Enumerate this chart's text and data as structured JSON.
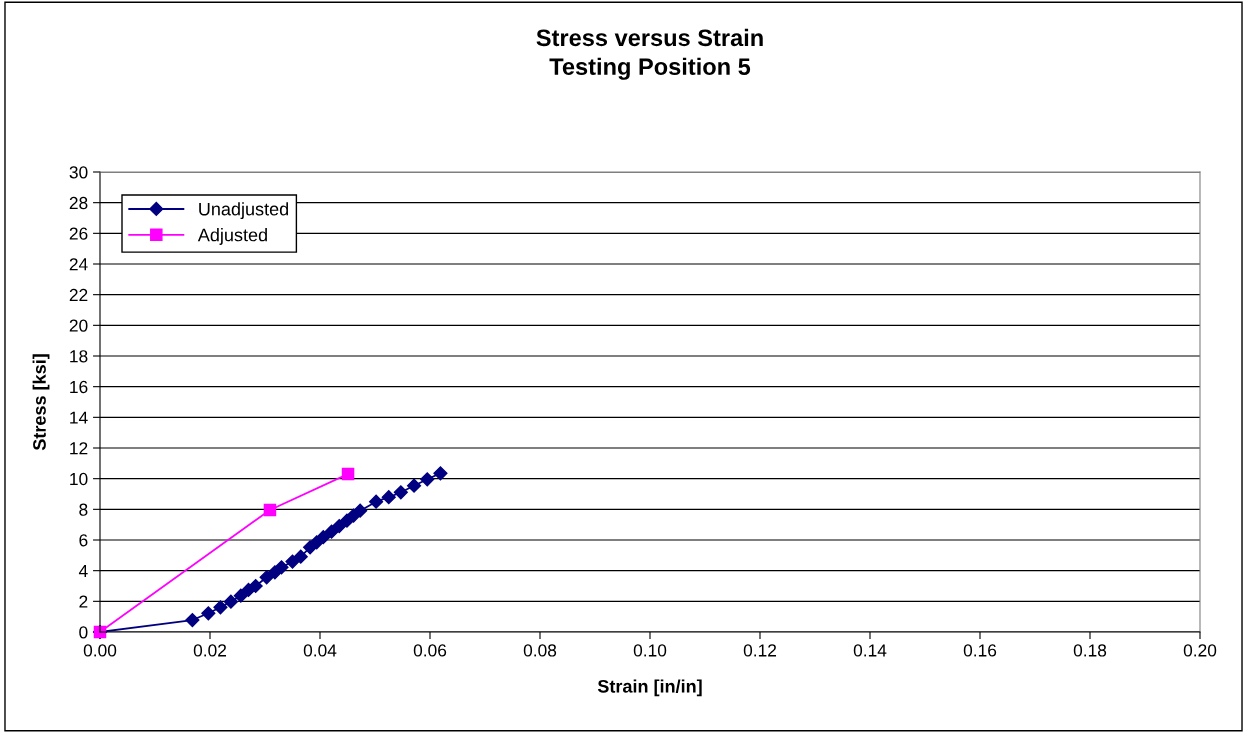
{
  "chart_data": {
    "type": "line",
    "title": "Stress versus Strain\nTesting Position 5",
    "xlabel": "Strain [in/in]",
    "ylabel": "Stress [ksi]",
    "series": [
      {
        "name": "Unadjusted",
        "color": "#000080",
        "marker": "diamond",
        "x": [
          0,
          0.0168,
          0.0197,
          0.0219,
          0.0238,
          0.0256,
          0.027,
          0.0283,
          0.0303,
          0.0318,
          0.033,
          0.035,
          0.0365,
          0.0382,
          0.0394,
          0.0406,
          0.0421,
          0.0435,
          0.0449,
          0.0461,
          0.0473,
          0.0502,
          0.0525,
          0.0547,
          0.0571,
          0.0595,
          0.0619
        ],
        "values": [
          0,
          0.78,
          1.22,
          1.61,
          1.98,
          2.37,
          2.74,
          3.0,
          3.57,
          3.89,
          4.22,
          4.59,
          4.91,
          5.52,
          5.85,
          6.18,
          6.54,
          6.91,
          7.26,
          7.59,
          7.91,
          8.5,
          8.79,
          9.11,
          9.54,
          9.96,
          10.35
        ]
      },
      {
        "name": "Adjusted",
        "color": "#ff00ff",
        "marker": "square",
        "x": [
          0,
          0.0309,
          0.0451
        ],
        "values": [
          0,
          7.96,
          10.3
        ]
      }
    ],
    "xlim": [
      0,
      0.2
    ],
    "xticks": [
      {
        "value": 0,
        "label": "0.00"
      },
      {
        "value": 0.02,
        "label": "0.02"
      },
      {
        "value": 0.04,
        "label": "0.04"
      },
      {
        "value": 0.06,
        "label": "0.06"
      },
      {
        "value": 0.08,
        "label": "0.08"
      },
      {
        "value": 0.1,
        "label": "0.10"
      },
      {
        "value": 0.12,
        "label": "0.12"
      },
      {
        "value": 0.14,
        "label": "0.14"
      },
      {
        "value": 0.16,
        "label": "0.16"
      },
      {
        "value": 0.18,
        "label": "0.18"
      },
      {
        "value": 0.2,
        "label": "0.20"
      }
    ],
    "ylim": [
      0,
      30
    ],
    "yticks": [
      0,
      2,
      4,
      6,
      8,
      10,
      12,
      14,
      16,
      18,
      20,
      22,
      24,
      26,
      28,
      30
    ],
    "grid": "y",
    "legend": "top left"
  }
}
